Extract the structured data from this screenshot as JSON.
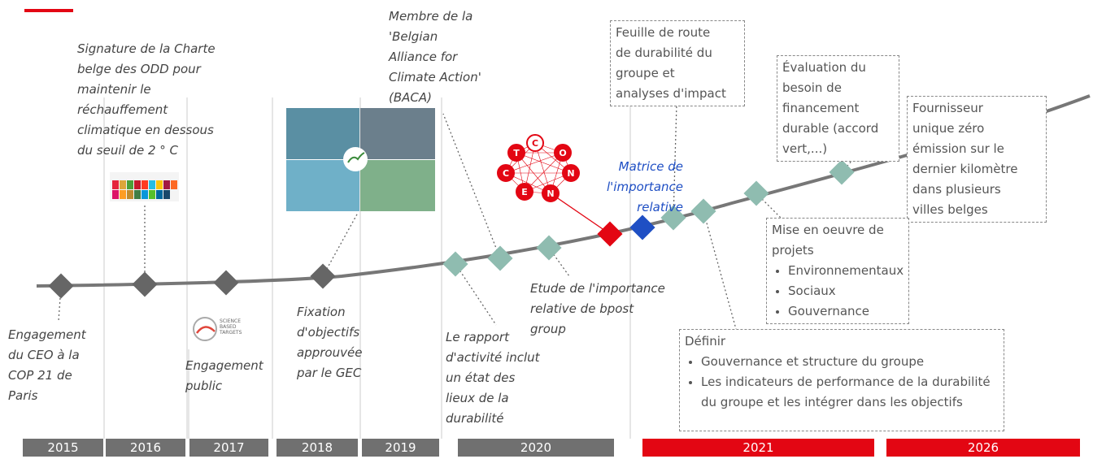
{
  "years": [
    "2015",
    "2016",
    "2017",
    "2018",
    "2019",
    "2020",
    "2021",
    "2026"
  ],
  "events": [
    {
      "lines": [
        "Engagement",
        "du CEO à la",
        "COP 21 de",
        "Paris"
      ]
    },
    {
      "lines": [
        "Signature de la Charte",
        "belge des ODD pour",
        "maintenir le",
        "réchauffement",
        "climatique en dessous",
        "du seuil de 2 ° C"
      ]
    },
    {
      "lines": [
        "Engagement",
        "public"
      ]
    },
    {
      "lines": [
        "Fixation",
        "d'objectifs",
        "approuvée",
        "par le GEC"
      ]
    },
    {
      "lines": [
        "Membre de la",
        "'Belgian",
        "Alliance for",
        "Climate Action'",
        "(BACA)"
      ]
    },
    {
      "lines": [
        "Le rapport",
        "d'activité inclut",
        "un état des",
        "lieux de la",
        "durabilité"
      ]
    },
    {
      "lines": [
        "Etude de l'importance",
        "relative de bpost",
        "group"
      ]
    },
    {
      "lines": [
        "Matrice de",
        "l'importance",
        "relative"
      ]
    }
  ],
  "boxes": [
    {
      "lines": [
        "Feuille de route",
        "de durabilité du",
        "groupe et",
        "analyses d'impact"
      ]
    },
    {
      "lines": [
        "Évaluation du",
        "besoin de",
        "financement",
        "durable (accord",
        "vert,...)"
      ]
    },
    {
      "lines": [
        "Fournisseur",
        "unique zéro",
        "émission sur le",
        "dernier kilomètre",
        "dans plusieurs",
        "villes belges"
      ]
    }
  ],
  "projects": {
    "title": [
      "Mise en oeuvre de",
      "projets"
    ],
    "bullets": [
      "Environnementaux",
      "Sociaux",
      "Gouvernance"
    ]
  },
  "define": {
    "title": "Définir",
    "bullets": [
      "Gouvernance et structure du groupe",
      "Les indicateurs de performance de la durabilité du groupe et les intégrer dans les objectifs"
    ]
  },
  "logo_letters": [
    "C",
    "O",
    "N",
    "N",
    "E",
    "C",
    "T"
  ],
  "sbt_logo": [
    "SCIENCE",
    "BASED",
    "TARGETS"
  ]
}
